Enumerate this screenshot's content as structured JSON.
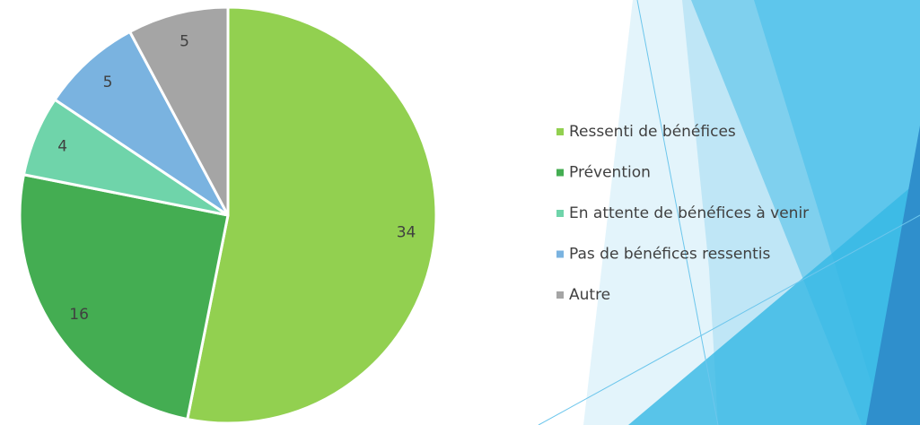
{
  "chart_data": {
    "type": "pie",
    "categories": [
      "Ressenti de bénéfices",
      "Prévention",
      "En attente de bénéfices à venir",
      "Pas de bénéfices ressentis",
      "Autre"
    ],
    "values": [
      34,
      16,
      4,
      5,
      5
    ],
    "colors": [
      "#92d050",
      "#44ad52",
      "#6fd4aa",
      "#7ab3e0",
      "#a5a5a5"
    ],
    "legend": "right"
  }
}
